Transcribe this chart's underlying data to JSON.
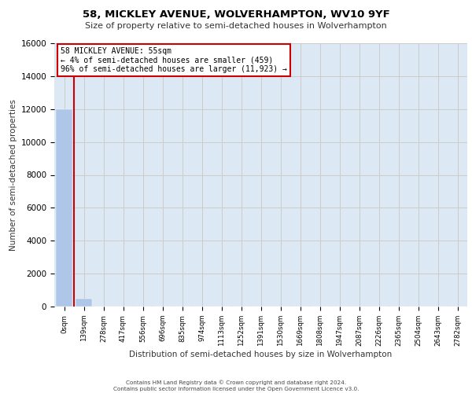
{
  "title_line1": "58, MICKLEY AVENUE, WOLVERHAMPTON, WV10 9YF",
  "title_line2": "Size of property relative to semi-detached houses in Wolverhampton",
  "xlabel": "Distribution of semi-detached houses by size in Wolverhampton",
  "ylabel": "Number of semi-detached properties",
  "categories": [
    "0sqm",
    "139sqm",
    "278sqm",
    "417sqm",
    "556sqm",
    "696sqm",
    "835sqm",
    "974sqm",
    "1113sqm",
    "1252sqm",
    "1391sqm",
    "1530sqm",
    "1669sqm",
    "1808sqm",
    "1947sqm",
    "2087sqm",
    "2226sqm",
    "2365sqm",
    "2504sqm",
    "2643sqm",
    "2782sqm"
  ],
  "bar_values": [
    12000,
    459,
    20,
    5,
    2,
    1,
    1,
    1,
    0,
    0,
    0,
    0,
    0,
    0,
    0,
    0,
    0,
    0,
    0,
    0,
    0
  ],
  "bar_color": "#aec6e8",
  "annotation_text_line1": "58 MICKLEY AVENUE: 55sqm",
  "annotation_text_line2": "← 4% of semi-detached houses are smaller (459)",
  "annotation_text_line3": "96% of semi-detached houses are larger (11,923) →",
  "annotation_box_color": "#ffffff",
  "annotation_box_edge_color": "#cc0000",
  "ylim": [
    0,
    16000
  ],
  "yticks": [
    0,
    2000,
    4000,
    6000,
    8000,
    10000,
    12000,
    14000,
    16000
  ],
  "grid_color": "#cccccc",
  "background_color": "#dce9f5",
  "footer_line1": "Contains HM Land Registry data © Crown copyright and database right 2024.",
  "footer_line2": "Contains public sector information licensed under the Open Government Licence v3.0."
}
